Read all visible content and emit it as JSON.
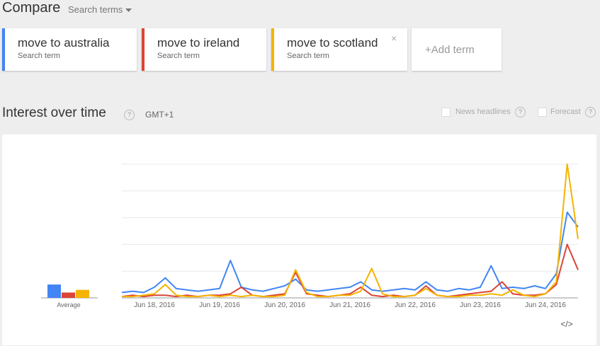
{
  "header": {
    "title": "Compare",
    "dropdown": "Search terms"
  },
  "terms": [
    {
      "label": "move to australia",
      "sublabel": "Search term",
      "color": "#4285f4"
    },
    {
      "label": "move to ireland",
      "sublabel": "Search term",
      "color": "#db4437"
    },
    {
      "label": "move to scotland",
      "sublabel": "Search term",
      "color": "#f4b400"
    }
  ],
  "close_icon": "×",
  "add_term": "+Add term",
  "section": {
    "title": "Interest over time",
    "help_icon": "?",
    "timezone": "GMT+1",
    "news_headlines": "News headlines",
    "forecast": "Forecast"
  },
  "embed_icon": "</>",
  "chart_data": {
    "type": "line",
    "average_label": "Average",
    "categories": [
      null,
      null,
      null,
      "Jun 18, 2016",
      null,
      null,
      null,
      null,
      null,
      "Jun 19, 2016",
      null,
      null,
      null,
      null,
      null,
      "Jun 20, 2016",
      null,
      null,
      null,
      null,
      null,
      "Jun 21, 2016",
      null,
      null,
      null,
      null,
      null,
      "Jun 22, 2016",
      null,
      null,
      null,
      null,
      null,
      "Jun 23, 2016",
      null,
      null,
      null,
      null,
      null,
      "Jun 24, 2016",
      null,
      null,
      null
    ],
    "ylim": [
      0,
      100
    ],
    "yticks": [
      0,
      20,
      40,
      60,
      80,
      100
    ],
    "grid": true,
    "series": [
      {
        "name": "move to australia",
        "color": "#4285f4",
        "average": 10,
        "values": [
          4,
          5,
          4,
          8,
          15,
          7,
          6,
          5,
          6,
          7,
          28,
          8,
          6,
          5,
          7,
          9,
          14,
          6,
          5,
          6,
          7,
          8,
          12,
          6,
          5,
          6,
          7,
          6,
          12,
          6,
          5,
          7,
          6,
          8,
          24,
          7,
          8,
          7,
          9,
          7,
          18,
          64,
          53
        ]
      },
      {
        "name": "move to ireland",
        "color": "#db4437",
        "average": 4,
        "values": [
          1,
          2,
          1,
          2,
          2,
          1,
          2,
          1,
          2,
          2,
          3,
          8,
          2,
          1,
          2,
          3,
          19,
          3,
          2,
          1,
          2,
          3,
          8,
          2,
          1,
          2,
          1,
          2,
          9,
          2,
          1,
          2,
          3,
          4,
          5,
          12,
          3,
          2,
          2,
          3,
          10,
          40,
          21
        ]
      },
      {
        "name": "move to scotland",
        "color": "#f4b400",
        "average": 6,
        "values": [
          1,
          1,
          2,
          3,
          10,
          2,
          1,
          1,
          2,
          1,
          2,
          1,
          2,
          1,
          1,
          2,
          21,
          4,
          1,
          1,
          2,
          2,
          5,
          22,
          3,
          1,
          1,
          2,
          7,
          2,
          1,
          1,
          2,
          2,
          3,
          2,
          6,
          2,
          1,
          3,
          12,
          100,
          44
        ]
      }
    ]
  }
}
